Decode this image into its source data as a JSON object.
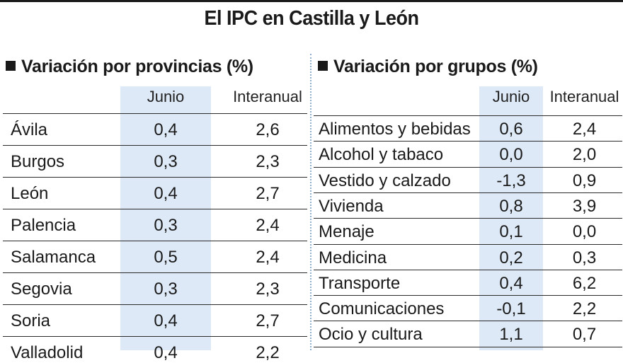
{
  "title": "El IPC en Castilla y León",
  "colors": {
    "shade": "#dde9f6",
    "rule": "#1a1a1a",
    "divider": "#8fb0d0"
  },
  "chart_data": [
    {
      "type": "table",
      "title": "Variación por provincias (%)",
      "columns": [
        "",
        "Junio",
        "Interanual"
      ],
      "rows": [
        {
          "label": "Ávila",
          "junio": "0,4",
          "interanual": "2,6"
        },
        {
          "label": "Burgos",
          "junio": "0,3",
          "interanual": "2,3"
        },
        {
          "label": "León",
          "junio": "0,4",
          "interanual": "2,7"
        },
        {
          "label": "Palencia",
          "junio": "0,3",
          "interanual": "2,4"
        },
        {
          "label": "Salamanca",
          "junio": "0,5",
          "interanual": "2,4"
        },
        {
          "label": "Segovia",
          "junio": "0,3",
          "interanual": "2,3"
        },
        {
          "label": "Soria",
          "junio": "0,4",
          "interanual": "2,7"
        },
        {
          "label": "Valladolid",
          "junio": "0,4",
          "interanual": "2,2"
        }
      ]
    },
    {
      "type": "table",
      "title": "Variación por grupos (%)",
      "columns": [
        "",
        "Junio",
        "Interanual"
      ],
      "rows": [
        {
          "label": "Alimentos y bebidas",
          "junio": "0,6",
          "interanual": "2,4"
        },
        {
          "label": "Alcohol y tabaco",
          "junio": "0,0",
          "interanual": "2,0"
        },
        {
          "label": "Vestido y calzado",
          "junio": "-1,3",
          "interanual": "0,9"
        },
        {
          "label": "Vivienda",
          "junio": "0,8",
          "interanual": "3,9"
        },
        {
          "label": "Menaje",
          "junio": "0,1",
          "interanual": "0,0"
        },
        {
          "label": "Medicina",
          "junio": "0,2",
          "interanual": "0,3"
        },
        {
          "label": "Transporte",
          "junio": "0,4",
          "interanual": "6,2"
        },
        {
          "label": "Comunicaciones",
          "junio": "-0,1",
          "interanual": "2,2"
        },
        {
          "label": "Ocio y cultura",
          "junio": "1,1",
          "interanual": "0,7"
        }
      ]
    }
  ]
}
